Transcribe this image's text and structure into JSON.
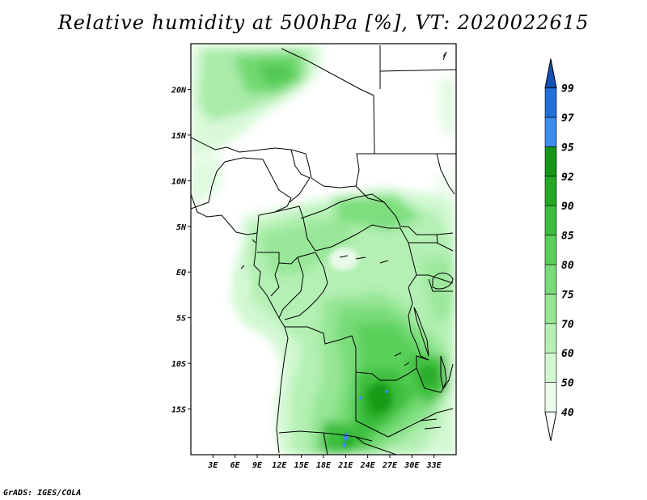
{
  "title": "Relative humidity at 500hPa [%], VT: 2020022615",
  "credit": "GrADS: IGES/COLA",
  "map": {
    "lon_range": [
      0,
      36
    ],
    "lat_range": [
      -20,
      25
    ],
    "lon_ticks": [
      {
        "value": 3,
        "label": "3E"
      },
      {
        "value": 6,
        "label": "6E"
      },
      {
        "value": 9,
        "label": "9E"
      },
      {
        "value": 12,
        "label": "12E"
      },
      {
        "value": 15,
        "label": "15E"
      },
      {
        "value": 18,
        "label": "18E"
      },
      {
        "value": 21,
        "label": "21E"
      },
      {
        "value": 24,
        "label": "24E"
      },
      {
        "value": 27,
        "label": "27E"
      },
      {
        "value": 30,
        "label": "30E"
      },
      {
        "value": 33,
        "label": "33E"
      }
    ],
    "lat_ticks": [
      {
        "value": 20,
        "label": "20N"
      },
      {
        "value": 15,
        "label": "15N"
      },
      {
        "value": 10,
        "label": "10N"
      },
      {
        "value": 5,
        "label": "5N"
      },
      {
        "value": 0,
        "label": "EQ"
      },
      {
        "value": -5,
        "label": "5S"
      },
      {
        "value": -10,
        "label": "10S"
      },
      {
        "value": -15,
        "label": "15S"
      }
    ]
  },
  "colorbar": {
    "levels": [
      {
        "label": "40",
        "color": "#ecfcec"
      },
      {
        "label": "50",
        "color": "#d2f8d2"
      },
      {
        "label": "60",
        "color": "#b4f0b4"
      },
      {
        "label": "70",
        "color": "#96e696"
      },
      {
        "label": "75",
        "color": "#78dc78"
      },
      {
        "label": "80",
        "color": "#5ad05a"
      },
      {
        "label": "85",
        "color": "#3cbe3c"
      },
      {
        "label": "90",
        "color": "#24a824"
      },
      {
        "label": "92",
        "color": "#149614"
      },
      {
        "label": "95",
        "color": "#3c8cf0"
      },
      {
        "label": "97",
        "color": "#2070dc"
      },
      {
        "label": "99",
        "color": "#1450b4"
      }
    ],
    "low_color": "#ffffff"
  }
}
